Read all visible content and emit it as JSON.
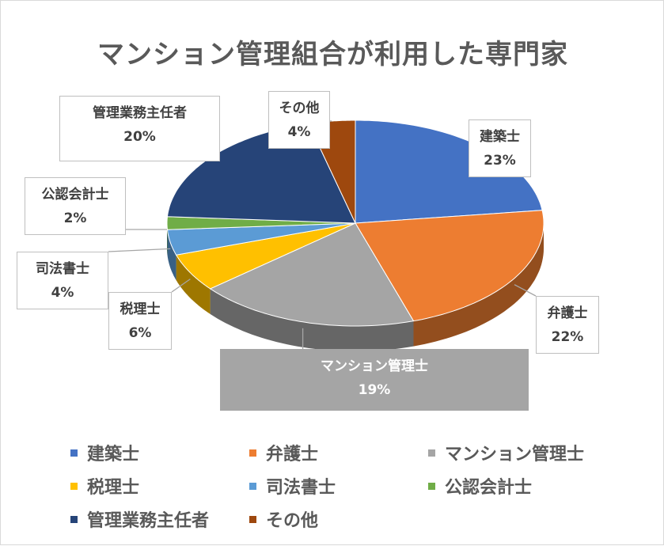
{
  "chart_data": {
    "type": "pie",
    "title": "マンション管理組合が利用した専門家",
    "categories": [
      "建築士",
      "弁護士",
      "マンション管理士",
      "税理士",
      "司法書士",
      "公認会計士",
      "管理業務主任者",
      "その他"
    ],
    "values": [
      23,
      22,
      19,
      6,
      4,
      2,
      20,
      4
    ],
    "value_labels": [
      "23%",
      "22%",
      "19%",
      "6%",
      "4%",
      "2%",
      "20%",
      "4%"
    ],
    "colors": [
      "#4472c4",
      "#ed7d31",
      "#a5a5a5",
      "#ffc000",
      "#5b9bd5",
      "#70ad47",
      "#264478",
      "#9e480e"
    ],
    "legend_position": "bottom",
    "style": "3d"
  }
}
